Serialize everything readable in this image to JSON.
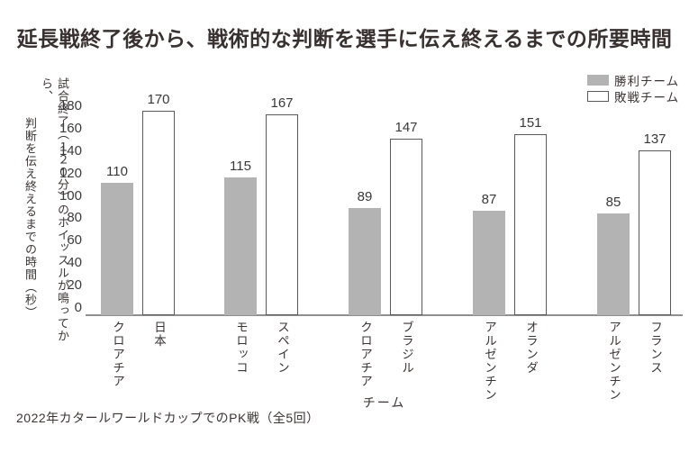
{
  "title": "延長戦終了後から、戦術的な判断を選手に伝え終えるまでの所要時間",
  "legend": {
    "win_label": "勝利チーム",
    "lose_label": "敗戦チーム"
  },
  "footnote": "2022年カタールワールドカップでのPK戦（全5回）",
  "colors": {
    "win_bar_fill": "#b3b3b3",
    "lose_bar_fill": "#ffffff",
    "lose_bar_border": "#5a5a5a",
    "axis_line": "#8f8f8f",
    "text": "#3a3432"
  },
  "chart_data": {
    "type": "bar",
    "title": "延長戦終了後から、戦術的な判断を選手に伝え終えるまでの所要時間",
    "xlabel": "チーム",
    "ylabel": "試合終了（１２０分）のホイッスルが鳴ってから、判断を伝え終えるまでの時間（秒）",
    "ylabel_col1": "試合終了（１２０分）のホイッスルが鳴ってから、",
    "ylabel_col2": "判断を伝え終えるまでの時間（秒）",
    "ylim": [
      0,
      180
    ],
    "yticks": [
      180,
      160,
      140,
      120,
      100,
      80,
      60,
      40,
      20,
      0
    ],
    "grid": false,
    "legend_position": "top-right",
    "series": [
      {
        "name": "勝利チーム",
        "style": "filled-gray",
        "values": [
          110,
          115,
          89,
          87,
          85
        ]
      },
      {
        "name": "敗戦チーム",
        "style": "outlined-white",
        "values": [
          170,
          167,
          147,
          151,
          137
        ]
      }
    ],
    "categories": [
      "クロアチア",
      "日本",
      "モロッコ",
      "スペイン",
      "クロアチア",
      "ブラジル",
      "アルゼンチン",
      "オランダ",
      "アルゼンチン",
      "フランス"
    ],
    "groups": [
      {
        "bars": [
          {
            "team": "クロアチア",
            "value": 110,
            "series": "勝利チーム"
          },
          {
            "team": "日本",
            "value": 170,
            "series": "敗戦チーム"
          }
        ]
      },
      {
        "bars": [
          {
            "team": "モロッコ",
            "value": 115,
            "series": "勝利チーム"
          },
          {
            "team": "スペイン",
            "value": 167,
            "series": "敗戦チーム"
          }
        ]
      },
      {
        "bars": [
          {
            "team": "クロアチア",
            "value": 89,
            "series": "勝利チーム"
          },
          {
            "team": "ブラジル",
            "value": 147,
            "series": "敗戦チーム"
          }
        ]
      },
      {
        "bars": [
          {
            "team": "アルゼンチン",
            "value": 87,
            "series": "勝利チーム"
          },
          {
            "team": "オランダ",
            "value": 151,
            "series": "敗戦チーム"
          }
        ]
      },
      {
        "bars": [
          {
            "team": "アルゼンチン",
            "value": 85,
            "series": "勝利チーム"
          },
          {
            "team": "フランス",
            "value": 137,
            "series": "敗戦チーム"
          }
        ]
      }
    ]
  }
}
